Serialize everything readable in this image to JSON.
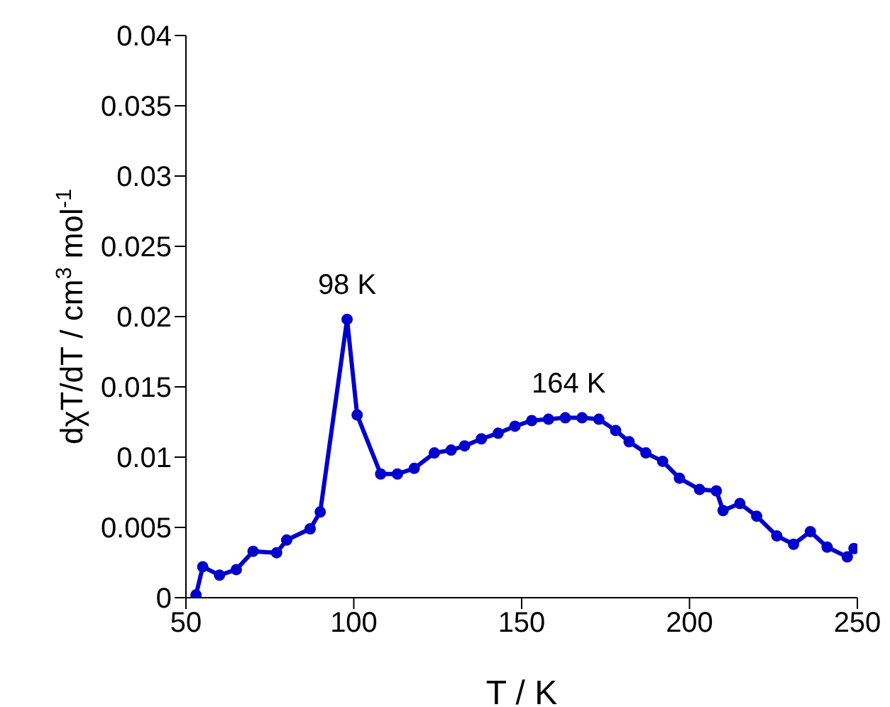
{
  "chart_data": {
    "type": "line",
    "xlabel": "T / K",
    "ylabel": "dχT/dT / cm$^{3}$ mol$^{-1}$",
    "x": [
      53,
      55,
      60,
      65,
      70,
      77,
      80,
      87,
      90,
      98,
      101,
      108,
      113,
      118,
      124,
      129,
      133,
      138,
      143,
      148,
      153,
      158,
      163,
      168,
      173,
      178,
      182,
      187,
      192,
      197,
      203,
      208,
      210,
      215,
      220,
      226,
      231,
      236,
      241,
      247,
      249
    ],
    "series": [
      {
        "color": "#0000cc",
        "values": [
          0.0002,
          0.0022,
          0.0016,
          0.002,
          0.0033,
          0.0032,
          0.0041,
          0.0049,
          0.0061,
          0.0198,
          0.013,
          0.0088,
          0.0088,
          0.0092,
          0.0103,
          0.0105,
          0.0108,
          0.0113,
          0.0117,
          0.0122,
          0.0126,
          0.0127,
          0.0128,
          0.0128,
          0.0127,
          0.0119,
          0.0111,
          0.0103,
          0.0097,
          0.0085,
          0.0077,
          0.0076,
          0.0062,
          0.0067,
          0.0058,
          0.0044,
          0.0038,
          0.0047,
          0.0036,
          0.0029,
          0.0035
        ]
      }
    ],
    "xlim": [
      50,
      250
    ],
    "xticks": [
      50,
      100,
      150,
      200,
      250
    ],
    "ylim": [
      0,
      0.04
    ],
    "yticks": [
      0,
      0.005,
      0.01,
      0.015,
      0.02,
      0.025,
      0.03,
      0.035,
      0.04
    ],
    "annotations": [
      {
        "text": "98 K",
        "x": 98,
        "y": 0.0198
      },
      {
        "text": "164 K",
        "x": 164,
        "y": 0.0128
      }
    ],
    "marker": "circle",
    "line_style": "solid",
    "grid": false,
    "legend": false
  }
}
